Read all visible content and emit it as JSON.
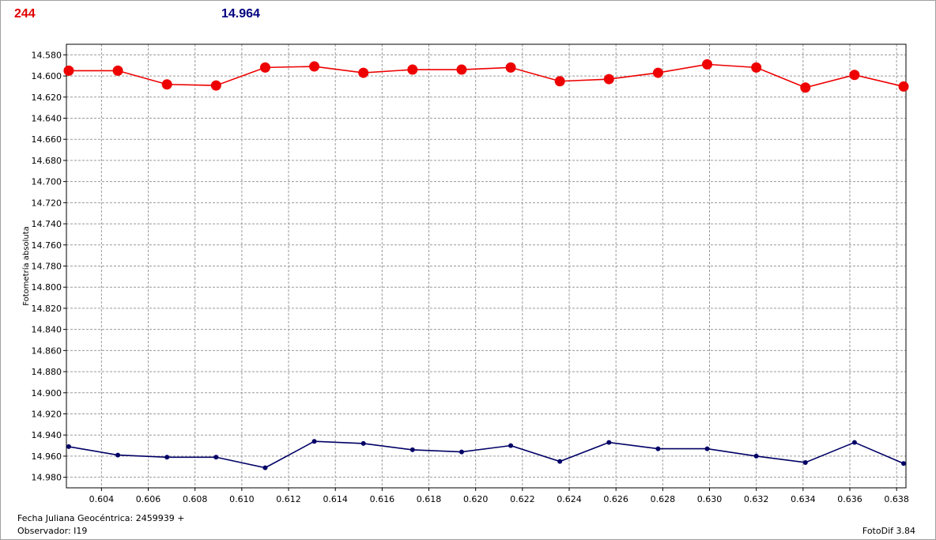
{
  "header": {
    "left_value": "244",
    "right_value": "14.964"
  },
  "footer": {
    "date_label": "Fecha Juliana Geocéntrica: 2459939 +",
    "observer_label": "Observador: I19",
    "software": "FotoDif 3.84"
  },
  "chart_data": {
    "type": "line",
    "title": "",
    "xlabel": "",
    "ylabel": "Fotometría absoluta",
    "y_inverted": true,
    "xlim": [
      0.6025,
      0.6384
    ],
    "ylim": [
      14.57,
      14.99
    ],
    "x_ticks": [
      "0.604",
      "0.606",
      "0.608",
      "0.610",
      "0.612",
      "0.614",
      "0.616",
      "0.618",
      "0.620",
      "0.622",
      "0.624",
      "0.626",
      "0.628",
      "0.630",
      "0.632",
      "0.634",
      "0.636",
      "0.638"
    ],
    "y_ticks": [
      "14.580",
      "14.600",
      "14.620",
      "14.640",
      "14.660",
      "14.680",
      "14.700",
      "14.720",
      "14.740",
      "14.760",
      "14.780",
      "14.800",
      "14.820",
      "14.840",
      "14.860",
      "14.880",
      "14.900",
      "14.920",
      "14.940",
      "14.960",
      "14.980"
    ],
    "grid": true,
    "x": [
      0.6026,
      0.6047,
      0.6068,
      0.6089,
      0.611,
      0.6131,
      0.6152,
      0.6173,
      0.6194,
      0.6215,
      0.6236,
      0.6257,
      0.6278,
      0.6299,
      0.632,
      0.6341,
      0.6362,
      0.6383
    ],
    "series": [
      {
        "color": "#ee0000",
        "marker": "circle-large",
        "values": [
          14.595,
          14.595,
          14.608,
          14.609,
          14.592,
          14.591,
          14.597,
          14.594,
          14.594,
          14.592,
          14.605,
          14.603,
          14.597,
          14.589,
          14.592,
          14.611,
          14.599,
          14.61
        ]
      },
      {
        "color": "#000066",
        "marker": "circle-small",
        "values": [
          14.951,
          14.959,
          14.961,
          14.961,
          14.971,
          14.946,
          14.948,
          14.954,
          14.956,
          14.95,
          14.965,
          14.947,
          14.953,
          14.953,
          14.96,
          14.966,
          14.947,
          14.967
        ]
      }
    ]
  }
}
